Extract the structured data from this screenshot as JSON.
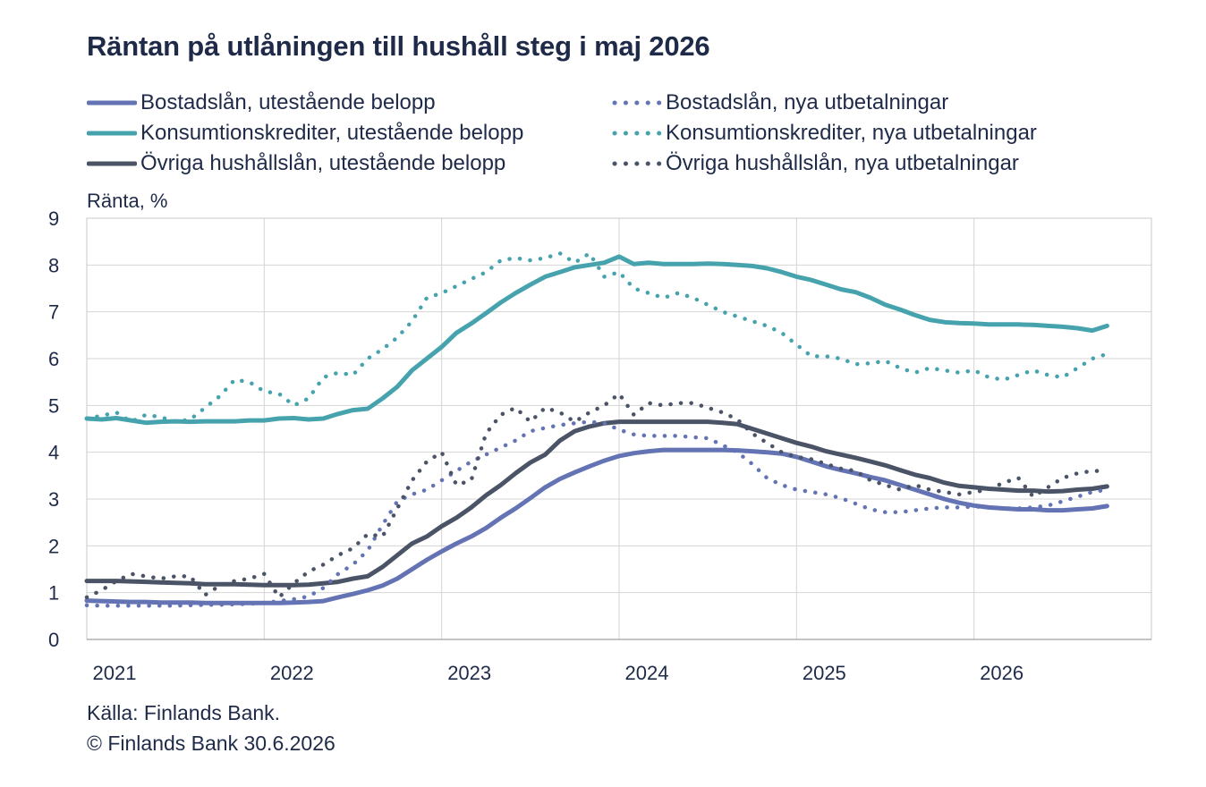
{
  "title": "Räntan på utlåningen till hushåll steg i maj 2026",
  "source": "Källa: Finlands Bank.",
  "copyright": "© Finlands Bank 30.6.2026",
  "chart_data": {
    "type": "line",
    "title": "Räntan på utlåningen till hushåll steg i maj 2026",
    "ylabel": "Ränta, %",
    "xlabel": "",
    "ylim": [
      0,
      9
    ],
    "yticks": [
      "0",
      "1",
      "2",
      "3",
      "4",
      "5",
      "6",
      "7",
      "8",
      "9"
    ],
    "xlim": [
      "2021-01",
      "2026-12"
    ],
    "xticks": [
      "2021",
      "2022",
      "2023",
      "2024",
      "2025",
      "2026"
    ],
    "grid": true,
    "legend_position": "top",
    "x_start": "2021-01",
    "x_step": "month",
    "series": [
      {
        "name": "Bostadslån, utestående belopp",
        "style": "solid",
        "color": "#6373b4",
        "values": [
          0.83,
          0.82,
          0.81,
          0.8,
          0.8,
          0.79,
          0.79,
          0.79,
          0.78,
          0.78,
          0.78,
          0.78,
          0.78,
          0.78,
          0.79,
          0.8,
          0.82,
          0.9,
          0.97,
          1.05,
          1.15,
          1.3,
          1.5,
          1.7,
          1.88,
          2.05,
          2.2,
          2.38,
          2.6,
          2.8,
          3.02,
          3.25,
          3.43,
          3.57,
          3.7,
          3.82,
          3.92,
          3.98,
          4.02,
          4.05,
          4.05,
          4.05,
          4.05,
          4.05,
          4.04,
          4.02,
          4.0,
          3.97,
          3.9,
          3.8,
          3.7,
          3.62,
          3.55,
          3.47,
          3.4,
          3.3,
          3.2,
          3.1,
          3.0,
          2.92,
          2.86,
          2.82,
          2.8,
          2.78,
          2.78,
          2.76,
          2.76,
          2.78,
          2.8,
          2.85
        ]
      },
      {
        "name": "Bostadslån, nya utbetalningar",
        "style": "dotted",
        "color": "#6373b4",
        "values": [
          0.73,
          0.72,
          0.72,
          0.72,
          0.72,
          0.72,
          0.72,
          0.73,
          0.74,
          0.74,
          0.75,
          0.76,
          0.78,
          0.82,
          0.86,
          0.92,
          1.1,
          1.4,
          1.6,
          1.9,
          2.45,
          2.95,
          3.1,
          3.2,
          3.4,
          3.6,
          3.8,
          3.95,
          4.1,
          4.25,
          4.45,
          4.52,
          4.58,
          4.62,
          4.65,
          4.62,
          4.48,
          4.38,
          4.35,
          4.35,
          4.35,
          4.32,
          4.3,
          4.15,
          4.0,
          3.75,
          3.45,
          3.3,
          3.2,
          3.15,
          3.1,
          3.02,
          2.9,
          2.78,
          2.72,
          2.72,
          2.76,
          2.8,
          2.82,
          2.82,
          2.84,
          2.82,
          2.8,
          2.8,
          2.82,
          2.86,
          2.95,
          3.05,
          3.15,
          3.2
        ]
      },
      {
        "name": "Konsumtionskrediter, utestående belopp",
        "style": "solid",
        "color": "#46a3ae",
        "values": [
          4.72,
          4.7,
          4.73,
          4.68,
          4.63,
          4.65,
          4.66,
          4.65,
          4.66,
          4.66,
          4.66,
          4.68,
          4.68,
          4.72,
          4.73,
          4.7,
          4.72,
          4.82,
          4.9,
          4.93,
          5.15,
          5.4,
          5.75,
          6.0,
          6.25,
          6.55,
          6.75,
          6.97,
          7.2,
          7.4,
          7.58,
          7.75,
          7.85,
          7.95,
          8.0,
          8.05,
          8.18,
          8.02,
          8.05,
          8.02,
          8.02,
          8.02,
          8.03,
          8.02,
          8.0,
          7.98,
          7.93,
          7.85,
          7.75,
          7.68,
          7.58,
          7.48,
          7.42,
          7.3,
          7.15,
          7.05,
          6.93,
          6.83,
          6.78,
          6.76,
          6.75,
          6.73,
          6.73,
          6.73,
          6.72,
          6.7,
          6.68,
          6.65,
          6.6,
          6.7
        ]
      },
      {
        "name": "Konsumtionskrediter, nya utbetalningar",
        "style": "dotted",
        "color": "#46a3ae",
        "values": [
          4.72,
          4.78,
          4.85,
          4.65,
          4.8,
          4.75,
          4.65,
          4.7,
          4.95,
          5.2,
          5.55,
          5.5,
          5.3,
          5.25,
          5.0,
          5.15,
          5.6,
          5.7,
          5.65,
          6.0,
          6.2,
          6.45,
          6.8,
          7.3,
          7.4,
          7.55,
          7.7,
          7.85,
          8.1,
          8.15,
          8.1,
          8.15,
          8.25,
          8.05,
          8.25,
          7.75,
          7.85,
          7.5,
          7.4,
          7.3,
          7.4,
          7.3,
          7.15,
          7.0,
          6.9,
          6.8,
          6.7,
          6.55,
          6.3,
          6.05,
          6.05,
          6.0,
          5.88,
          5.9,
          5.95,
          5.8,
          5.7,
          5.8,
          5.75,
          5.7,
          5.75,
          5.6,
          5.55,
          5.65,
          5.75,
          5.65,
          5.6,
          5.8,
          6.0,
          6.1
        ]
      },
      {
        "name": "Övriga hushållslån, utestående belopp",
        "style": "solid",
        "color": "#4b5366",
        "values": [
          1.25,
          1.25,
          1.25,
          1.24,
          1.23,
          1.22,
          1.21,
          1.2,
          1.18,
          1.18,
          1.18,
          1.17,
          1.16,
          1.16,
          1.16,
          1.17,
          1.2,
          1.23,
          1.3,
          1.35,
          1.55,
          1.8,
          2.05,
          2.2,
          2.42,
          2.6,
          2.82,
          3.08,
          3.3,
          3.55,
          3.78,
          3.95,
          4.25,
          4.45,
          4.55,
          4.62,
          4.65,
          4.65,
          4.65,
          4.65,
          4.65,
          4.65,
          4.65,
          4.63,
          4.6,
          4.5,
          4.4,
          4.3,
          4.2,
          4.12,
          4.02,
          3.95,
          3.88,
          3.8,
          3.72,
          3.62,
          3.52,
          3.45,
          3.35,
          3.28,
          3.25,
          3.22,
          3.2,
          3.18,
          3.18,
          3.16,
          3.17,
          3.2,
          3.22,
          3.27
        ]
      },
      {
        "name": "Övriga hushållslån, nya utbetalningar",
        "style": "dotted",
        "color": "#4b5366",
        "values": [
          0.9,
          1.05,
          1.25,
          1.4,
          1.35,
          1.3,
          1.35,
          1.35,
          0.95,
          1.15,
          1.25,
          1.3,
          1.4,
          0.9,
          1.2,
          1.45,
          1.6,
          1.8,
          1.95,
          2.25,
          2.2,
          2.8,
          3.4,
          3.8,
          4.0,
          3.3,
          3.4,
          4.4,
          4.8,
          4.95,
          4.65,
          4.95,
          4.85,
          4.65,
          4.85,
          5.0,
          5.25,
          4.8,
          5.05,
          5.0,
          5.05,
          5.05,
          4.95,
          4.85,
          4.7,
          4.4,
          4.2,
          4.0,
          3.9,
          3.85,
          3.75,
          3.65,
          3.6,
          3.4,
          3.3,
          3.2,
          3.3,
          3.2,
          3.15,
          3.1,
          3.15,
          3.2,
          3.35,
          3.45,
          3.05,
          3.25,
          3.45,
          3.55,
          3.6,
          3.6
        ]
      }
    ]
  }
}
